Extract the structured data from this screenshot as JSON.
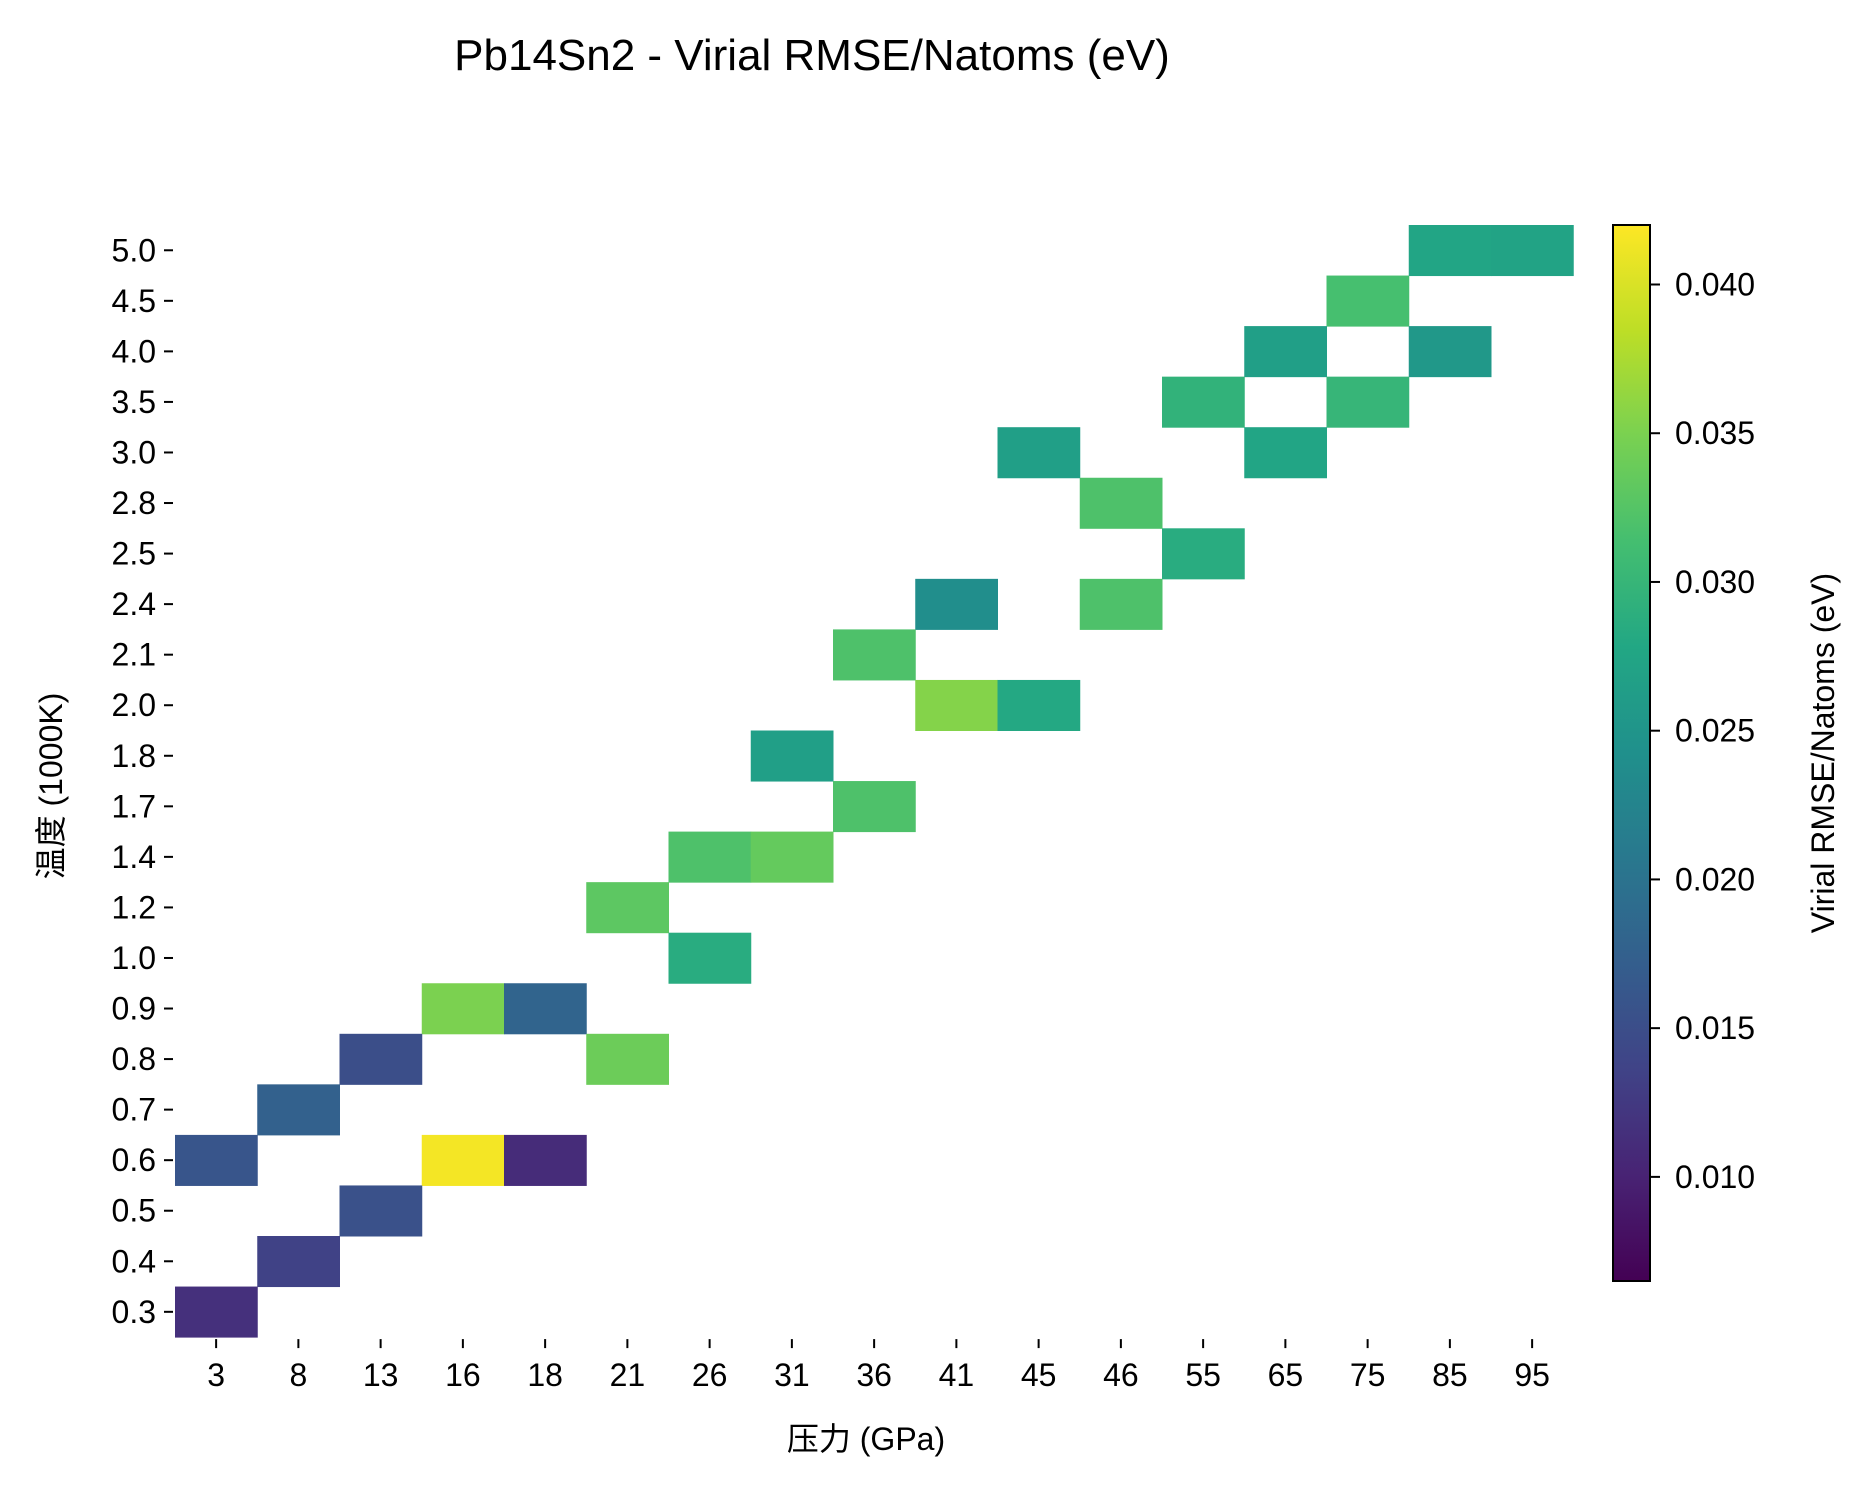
{
  "chart_data": {
    "type": "heatmap",
    "title": "Pb14Sn2 - Virial RMSE/Natoms (eV)",
    "xlabel": "压力 (GPa)",
    "ylabel": "温度 (1000K)",
    "x_categories": [
      "3",
      "8",
      "13",
      "16",
      "18",
      "21",
      "26",
      "31",
      "36",
      "41",
      "45",
      "46",
      "55",
      "65",
      "75",
      "85",
      "95"
    ],
    "y_categories": [
      "5.0",
      "4.5",
      "4.0",
      "3.5",
      "3.0",
      "2.8",
      "2.5",
      "2.4",
      "2.1",
      "2.0",
      "1.8",
      "1.7",
      "1.4",
      "1.2",
      "1.0",
      "0.9",
      "0.8",
      "0.7",
      "0.6",
      "0.5",
      "0.4",
      "0.3"
    ],
    "colormap": "viridis",
    "colorbar": {
      "label": "Virial RMSE/Natoms (eV)",
      "min": 0.0065,
      "max": 0.042,
      "ticks": [
        "0.010",
        "0.015",
        "0.020",
        "0.025",
        "0.030",
        "0.035",
        "0.040"
      ]
    },
    "cells": [
      {
        "x": "85",
        "y": "5.0",
        "value": 0.0275
      },
      {
        "x": "95",
        "y": "5.0",
        "value": 0.0272
      },
      {
        "x": "75",
        "y": "4.5",
        "value": 0.0315
      },
      {
        "x": "65",
        "y": "4.0",
        "value": 0.0265
      },
      {
        "x": "85",
        "y": "4.0",
        "value": 0.0255
      },
      {
        "x": "55",
        "y": "3.5",
        "value": 0.0295
      },
      {
        "x": "75",
        "y": "3.5",
        "value": 0.03
      },
      {
        "x": "45",
        "y": "3.0",
        "value": 0.0265
      },
      {
        "x": "65",
        "y": "3.0",
        "value": 0.0275
      },
      {
        "x": "46",
        "y": "2.8",
        "value": 0.032
      },
      {
        "x": "55",
        "y": "2.5",
        "value": 0.0285
      },
      {
        "x": "41",
        "y": "2.4",
        "value": 0.024
      },
      {
        "x": "46",
        "y": "2.4",
        "value": 0.032
      },
      {
        "x": "36",
        "y": "2.1",
        "value": 0.032
      },
      {
        "x": "41",
        "y": "2.0",
        "value": 0.0355
      },
      {
        "x": "45",
        "y": "2.0",
        "value": 0.028
      },
      {
        "x": "31",
        "y": "1.8",
        "value": 0.0265
      },
      {
        "x": "36",
        "y": "1.7",
        "value": 0.032
      },
      {
        "x": "26",
        "y": "1.4",
        "value": 0.032
      },
      {
        "x": "31",
        "y": "1.4",
        "value": 0.0335
      },
      {
        "x": "21",
        "y": "1.2",
        "value": 0.033
      },
      {
        "x": "26",
        "y": "1.0",
        "value": 0.0285
      },
      {
        "x": "16",
        "y": "0.9",
        "value": 0.035
      },
      {
        "x": "18",
        "y": "0.9",
        "value": 0.018
      },
      {
        "x": "13",
        "y": "0.8",
        "value": 0.015
      },
      {
        "x": "21",
        "y": "0.8",
        "value": 0.034
      },
      {
        "x": "8",
        "y": "0.7",
        "value": 0.0175
      },
      {
        "x": "3",
        "y": "0.6",
        "value": 0.016
      },
      {
        "x": "16",
        "y": "0.6",
        "value": 0.0415
      },
      {
        "x": "18",
        "y": "0.6",
        "value": 0.011
      },
      {
        "x": "13",
        "y": "0.5",
        "value": 0.0155
      },
      {
        "x": "8",
        "y": "0.4",
        "value": 0.0135
      },
      {
        "x": "3",
        "y": "0.3",
        "value": 0.0115
      }
    ]
  }
}
